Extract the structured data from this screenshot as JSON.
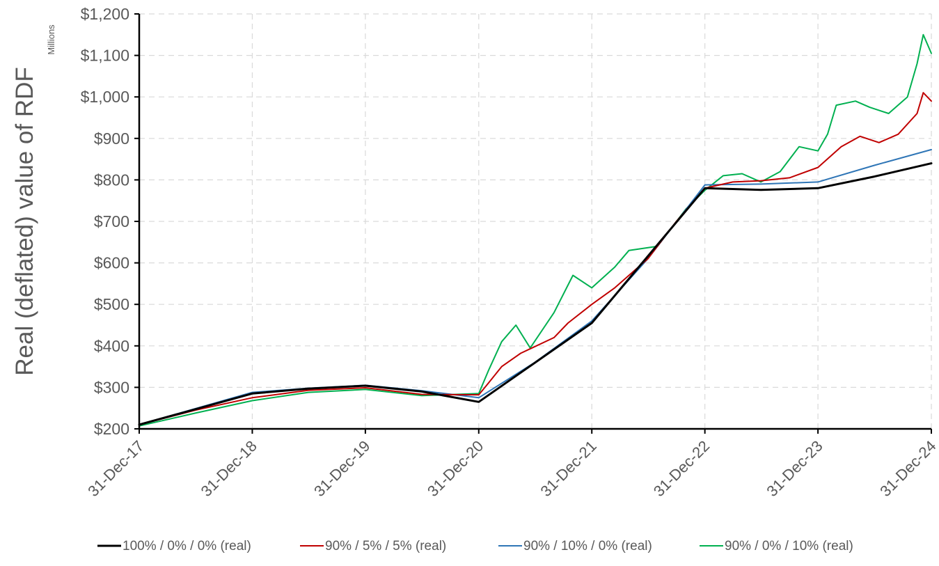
{
  "chart_data": {
    "type": "line",
    "title": "",
    "ylabel": "Real (deflated) value of RDF",
    "y_unit_label": "Millions",
    "xlabel": "",
    "ylim": [
      200,
      1200
    ],
    "y_ticks": [
      200,
      300,
      400,
      500,
      600,
      700,
      800,
      900,
      1000,
      1100,
      1200
    ],
    "y_tick_labels": [
      "$200",
      "$300",
      "$400",
      "$500",
      "$600",
      "$700",
      "$800",
      "$900",
      "$1,000",
      "$1,100",
      "$1,200"
    ],
    "x_tick_labels": [
      "31-Dec-17",
      "31-Dec-18",
      "31-Dec-19",
      "31-Dec-20",
      "31-Dec-21",
      "31-Dec-22",
      "31-Dec-23",
      "31-Dec-24"
    ],
    "x_tick_dates": [
      "2017-12-31",
      "2018-12-31",
      "2019-12-31",
      "2020-12-31",
      "2021-12-31",
      "2022-12-31",
      "2023-12-31",
      "2024-12-31"
    ],
    "gridlines": "dashed, horizontal and vertical",
    "legend_position": "bottom",
    "series": [
      {
        "name": "100% / 0% / 0% (real)",
        "color": "#000000",
        "points": [
          [
            "2017-12-31",
            210
          ],
          [
            "2018-12-31",
            285
          ],
          [
            "2019-06-30",
            297
          ],
          [
            "2019-12-31",
            304
          ],
          [
            "2020-06-30",
            290
          ],
          [
            "2020-12-31",
            265
          ],
          [
            "2021-12-31",
            455
          ],
          [
            "2022-12-31",
            780
          ],
          [
            "2023-06-30",
            776
          ],
          [
            "2023-12-31",
            780
          ],
          [
            "2024-06-30",
            808
          ],
          [
            "2024-12-31",
            840
          ]
        ]
      },
      {
        "name": "90% / 5% / 5% (real)",
        "color": "#c00000",
        "points": [
          [
            "2017-12-31",
            210
          ],
          [
            "2018-06-30",
            245
          ],
          [
            "2018-12-31",
            275
          ],
          [
            "2019-06-30",
            293
          ],
          [
            "2019-12-31",
            299
          ],
          [
            "2020-06-30",
            283
          ],
          [
            "2020-12-31",
            282
          ],
          [
            "2021-01-31",
            310
          ],
          [
            "2021-03-15",
            350
          ],
          [
            "2021-05-15",
            382
          ],
          [
            "2021-08-31",
            420
          ],
          [
            "2021-10-15",
            455
          ],
          [
            "2021-12-31",
            500
          ],
          [
            "2022-03-15",
            540
          ],
          [
            "2022-06-30",
            610
          ],
          [
            "2022-09-30",
            700
          ],
          [
            "2022-12-31",
            780
          ],
          [
            "2023-03-31",
            795
          ],
          [
            "2023-06-30",
            798
          ],
          [
            "2023-09-30",
            805
          ],
          [
            "2023-12-31",
            830
          ],
          [
            "2024-03-15",
            880
          ],
          [
            "2024-05-15",
            905
          ],
          [
            "2024-07-15",
            890
          ],
          [
            "2024-09-15",
            910
          ],
          [
            "2024-11-15",
            960
          ],
          [
            "2024-12-05",
            1010
          ],
          [
            "2024-12-31",
            990
          ]
        ]
      },
      {
        "name": "90% / 10% / 0% (real)",
        "color": "#2e75b6",
        "points": [
          [
            "2017-12-31",
            210
          ],
          [
            "2018-12-31",
            288
          ],
          [
            "2019-06-30",
            298
          ],
          [
            "2019-12-31",
            305
          ],
          [
            "2020-06-30",
            292
          ],
          [
            "2020-12-31",
            275
          ],
          [
            "2021-06-30",
            360
          ],
          [
            "2021-12-31",
            460
          ],
          [
            "2022-06-30",
            610
          ],
          [
            "2022-12-31",
            788
          ],
          [
            "2023-06-30",
            790
          ],
          [
            "2023-12-31",
            795
          ],
          [
            "2024-06-30",
            835
          ],
          [
            "2024-12-31",
            873
          ]
        ]
      },
      {
        "name": "90% / 0% / 10% (real)",
        "color": "#00b050",
        "points": [
          [
            "2017-12-31",
            207
          ],
          [
            "2018-06-30",
            238
          ],
          [
            "2018-12-31",
            268
          ],
          [
            "2019-06-30",
            288
          ],
          [
            "2019-12-31",
            295
          ],
          [
            "2020-06-30",
            280
          ],
          [
            "2020-12-31",
            285
          ],
          [
            "2021-01-31",
            340
          ],
          [
            "2021-03-15",
            410
          ],
          [
            "2021-04-30",
            450
          ],
          [
            "2021-06-15",
            395
          ],
          [
            "2021-08-31",
            480
          ],
          [
            "2021-10-31",
            570
          ],
          [
            "2021-12-31",
            540
          ],
          [
            "2022-03-15",
            590
          ],
          [
            "2022-04-30",
            630
          ],
          [
            "2022-07-31",
            640
          ],
          [
            "2022-10-31",
            730
          ],
          [
            "2022-12-31",
            775
          ],
          [
            "2023-02-28",
            810
          ],
          [
            "2023-04-30",
            815
          ],
          [
            "2023-06-30",
            795
          ],
          [
            "2023-08-31",
            820
          ],
          [
            "2023-10-31",
            880
          ],
          [
            "2023-12-31",
            870
          ],
          [
            "2024-01-31",
            910
          ],
          [
            "2024-02-28",
            980
          ],
          [
            "2024-04-30",
            990
          ],
          [
            "2024-06-15",
            975
          ],
          [
            "2024-08-15",
            960
          ],
          [
            "2024-10-15",
            1000
          ],
          [
            "2024-11-15",
            1080
          ],
          [
            "2024-12-05",
            1150
          ],
          [
            "2024-12-31",
            1105
          ]
        ]
      }
    ]
  }
}
